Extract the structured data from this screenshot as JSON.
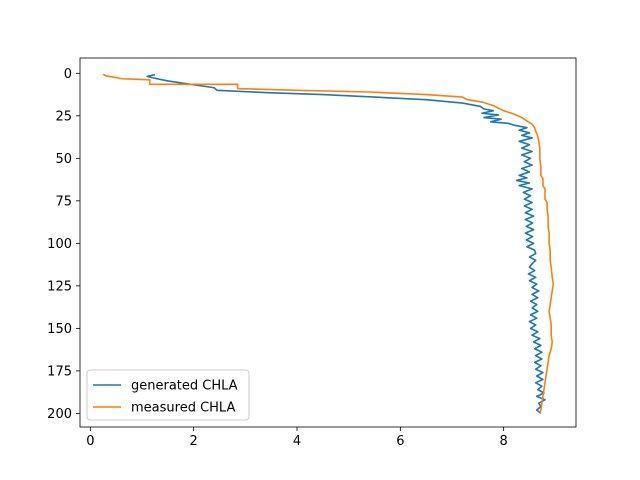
{
  "chart_data": {
    "type": "line",
    "title": "",
    "xlabel": "",
    "ylabel": "",
    "xlim": [
      -0.2,
      9.4
    ],
    "ylim": [
      208,
      -9
    ],
    "y_inverted": true,
    "x_ticks": [
      0,
      2,
      4,
      6,
      8
    ],
    "y_ticks": [
      0,
      25,
      50,
      75,
      100,
      125,
      150,
      175,
      200
    ],
    "grid": false,
    "legend_position": "lower-left",
    "series": [
      {
        "name": "generated CHLA",
        "color": "#1f77b4",
        "points": [
          [
            1.25,
            0.8
          ],
          [
            1.1,
            1.8
          ],
          [
            1.2,
            2.6
          ],
          [
            1.5,
            4.5
          ],
          [
            2.4,
            8.5
          ],
          [
            2.45,
            10.0
          ],
          [
            3.5,
            11.5
          ],
          [
            4.5,
            12.5
          ],
          [
            5.5,
            14.0
          ],
          [
            6.5,
            15.5
          ],
          [
            7.2,
            17.5
          ],
          [
            7.55,
            19.5
          ],
          [
            7.62,
            21.0
          ],
          [
            7.8,
            22.0
          ],
          [
            7.58,
            23.5
          ],
          [
            7.9,
            24.5
          ],
          [
            7.62,
            26.0
          ],
          [
            7.95,
            27.0
          ],
          [
            7.75,
            28.5
          ],
          [
            8.1,
            29.5
          ],
          [
            8.2,
            30.5
          ],
          [
            8.45,
            32.0
          ],
          [
            8.3,
            33.5
          ],
          [
            8.5,
            35.0
          ],
          [
            8.35,
            36.5
          ],
          [
            8.55,
            38.0
          ],
          [
            8.3,
            40.0
          ],
          [
            8.5,
            42.0
          ],
          [
            8.35,
            44.0
          ],
          [
            8.55,
            46.0
          ],
          [
            8.35,
            48.0
          ],
          [
            8.52,
            50.0
          ],
          [
            8.4,
            52.0
          ],
          [
            8.55,
            54.0
          ],
          [
            8.35,
            56.0
          ],
          [
            8.5,
            58.0
          ],
          [
            8.3,
            60.0
          ],
          [
            8.45,
            61.5
          ],
          [
            8.25,
            63.0
          ],
          [
            8.5,
            64.5
          ],
          [
            8.3,
            66.0
          ],
          [
            8.55,
            68.0
          ],
          [
            8.38,
            70.0
          ],
          [
            8.52,
            72.0
          ],
          [
            8.4,
            74.0
          ],
          [
            8.55,
            76.0
          ],
          [
            8.4,
            78.0
          ],
          [
            8.55,
            80.0
          ],
          [
            8.42,
            82.0
          ],
          [
            8.58,
            84.0
          ],
          [
            8.42,
            86.0
          ],
          [
            8.56,
            88.0
          ],
          [
            8.44,
            90.0
          ],
          [
            8.58,
            92.0
          ],
          [
            8.42,
            94.0
          ],
          [
            8.56,
            96.0
          ],
          [
            8.44,
            98.0
          ],
          [
            8.58,
            100.0
          ],
          [
            8.45,
            102.0
          ],
          [
            8.6,
            104.0
          ],
          [
            8.62,
            106.0
          ],
          [
            8.5,
            108.0
          ],
          [
            8.62,
            110.0
          ],
          [
            8.55,
            112.0
          ],
          [
            8.5,
            114.0
          ],
          [
            8.6,
            116.0
          ],
          [
            8.48,
            118.0
          ],
          [
            8.62,
            120.0
          ],
          [
            8.5,
            122.0
          ],
          [
            8.64,
            124.0
          ],
          [
            8.55,
            126.0
          ],
          [
            8.68,
            128.0
          ],
          [
            8.55,
            130.0
          ],
          [
            8.66,
            132.0
          ],
          [
            8.52,
            134.0
          ],
          [
            8.64,
            136.0
          ],
          [
            8.55,
            138.0
          ],
          [
            8.66,
            140.0
          ],
          [
            8.52,
            142.0
          ],
          [
            8.64,
            144.0
          ],
          [
            8.5,
            146.0
          ],
          [
            8.62,
            148.0
          ],
          [
            8.52,
            150.0
          ],
          [
            8.66,
            152.0
          ],
          [
            8.55,
            154.0
          ],
          [
            8.7,
            156.0
          ],
          [
            8.58,
            158.0
          ],
          [
            8.72,
            160.0
          ],
          [
            8.6,
            162.0
          ],
          [
            8.74,
            164.0
          ],
          [
            8.62,
            166.0
          ],
          [
            8.74,
            168.0
          ],
          [
            8.6,
            170.0
          ],
          [
            8.72,
            172.0
          ],
          [
            8.62,
            174.0
          ],
          [
            8.76,
            176.0
          ],
          [
            8.64,
            178.0
          ],
          [
            8.76,
            180.0
          ],
          [
            8.62,
            182.0
          ],
          [
            8.74,
            184.0
          ],
          [
            8.66,
            186.0
          ],
          [
            8.78,
            188.0
          ],
          [
            8.64,
            190.0
          ],
          [
            8.8,
            192.0
          ],
          [
            8.68,
            194.0
          ],
          [
            8.72,
            196.0
          ],
          [
            8.64,
            198.0
          ],
          [
            8.72,
            200.0
          ]
        ]
      },
      {
        "name": "measured CHLA",
        "color": "#ff7f0e",
        "points": [
          [
            0.25,
            0.5
          ],
          [
            0.3,
            1.5
          ],
          [
            0.5,
            2.5
          ],
          [
            0.6,
            3.2
          ],
          [
            1.15,
            3.8
          ],
          [
            1.15,
            6.5
          ],
          [
            2.85,
            6.5
          ],
          [
            2.85,
            9.0
          ],
          [
            4.0,
            10.0
          ],
          [
            5.4,
            11.0
          ],
          [
            6.5,
            12.5
          ],
          [
            7.2,
            14.0
          ],
          [
            7.3,
            15.5
          ],
          [
            7.6,
            17.0
          ],
          [
            7.8,
            19.0
          ],
          [
            7.9,
            20.5
          ],
          [
            8.0,
            22.0
          ],
          [
            8.2,
            24.0
          ],
          [
            8.35,
            26.0
          ],
          [
            8.45,
            28.0
          ],
          [
            8.55,
            30.0
          ],
          [
            8.6,
            32.0
          ],
          [
            8.62,
            34.0
          ],
          [
            8.65,
            36.0
          ],
          [
            8.68,
            40.0
          ],
          [
            8.7,
            44.0
          ],
          [
            8.7,
            50.0
          ],
          [
            8.72,
            55.0
          ],
          [
            8.72,
            60.0
          ],
          [
            8.76,
            62.0
          ],
          [
            8.76,
            66.0
          ],
          [
            8.8,
            68.0
          ],
          [
            8.8,
            74.0
          ],
          [
            8.84,
            76.0
          ],
          [
            8.84,
            80.0
          ],
          [
            8.86,
            84.0
          ],
          [
            8.86,
            90.0
          ],
          [
            8.88,
            94.0
          ],
          [
            8.88,
            100.0
          ],
          [
            8.9,
            104.0
          ],
          [
            8.9,
            110.0
          ],
          [
            8.92,
            114.0
          ],
          [
            8.94,
            120.0
          ],
          [
            8.96,
            124.0
          ],
          [
            8.94,
            128.0
          ],
          [
            8.92,
            132.0
          ],
          [
            8.9,
            136.0
          ],
          [
            8.88,
            140.0
          ],
          [
            8.9,
            144.0
          ],
          [
            8.92,
            148.0
          ],
          [
            8.92,
            154.0
          ],
          [
            8.94,
            158.0
          ],
          [
            8.92,
            162.0
          ],
          [
            8.88,
            166.0
          ],
          [
            8.86,
            170.0
          ],
          [
            8.84,
            174.0
          ],
          [
            8.82,
            178.0
          ],
          [
            8.8,
            182.0
          ],
          [
            8.78,
            186.0
          ],
          [
            8.76,
            190.0
          ],
          [
            8.74,
            194.0
          ],
          [
            8.72,
            198.0
          ],
          [
            8.7,
            200.0
          ]
        ]
      }
    ]
  }
}
